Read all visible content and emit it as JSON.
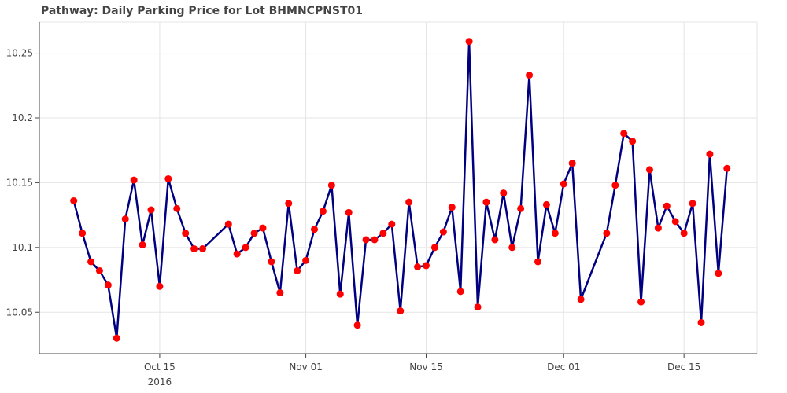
{
  "chart_data": {
    "type": "line",
    "title": "Pathway: Daily Parking Price for Lot BHMNCPNST01",
    "x": [
      "2016-10-05",
      "2016-10-06",
      "2016-10-07",
      "2016-10-08",
      "2016-10-09",
      "2016-10-10",
      "2016-10-11",
      "2016-10-12",
      "2016-10-13",
      "2016-10-14",
      "2016-10-15",
      "2016-10-16",
      "2016-10-17",
      "2016-10-18",
      "2016-10-19",
      "2016-10-20",
      "2016-10-23",
      "2016-10-24",
      "2016-10-25",
      "2016-10-26",
      "2016-10-27",
      "2016-10-28",
      "2016-10-29",
      "2016-10-30",
      "2016-10-31",
      "2016-11-01",
      "2016-11-02",
      "2016-11-03",
      "2016-11-04",
      "2016-11-05",
      "2016-11-06",
      "2016-11-07",
      "2016-11-08",
      "2016-11-09",
      "2016-11-10",
      "2016-11-11",
      "2016-11-12",
      "2016-11-13",
      "2016-11-14",
      "2016-11-15",
      "2016-11-16",
      "2016-11-17",
      "2016-11-18",
      "2016-11-19",
      "2016-11-20",
      "2016-11-21",
      "2016-11-22",
      "2016-11-23",
      "2016-11-24",
      "2016-11-25",
      "2016-11-26",
      "2016-11-27",
      "2016-11-28",
      "2016-11-29",
      "2016-11-30",
      "2016-12-01",
      "2016-12-02",
      "2016-12-03",
      "2016-12-06",
      "2016-12-07",
      "2016-12-08",
      "2016-12-09",
      "2016-12-10",
      "2016-12-11",
      "2016-12-12",
      "2016-12-13",
      "2016-12-14",
      "2016-12-15",
      "2016-12-16",
      "2016-12-17",
      "2016-12-18",
      "2016-12-19",
      "2016-12-20"
    ],
    "series": [
      {
        "line_color": "#000080",
        "marker_color": "#ff0000",
        "values": [
          10.136,
          10.111,
          10.089,
          10.082,
          10.071,
          10.03,
          10.122,
          10.152,
          10.102,
          10.129,
          10.07,
          10.153,
          10.13,
          10.111,
          10.099,
          10.099,
          10.118,
          10.095,
          10.1,
          10.111,
          10.115,
          10.089,
          10.065,
          10.134,
          10.082,
          10.09,
          10.114,
          10.128,
          10.148,
          10.064,
          10.127,
          10.04,
          10.106,
          10.106,
          10.111,
          10.118,
          10.051,
          10.135,
          10.085,
          10.086,
          10.1,
          10.112,
          10.131,
          10.066,
          10.259,
          10.054,
          10.135,
          10.106,
          10.142,
          10.1,
          10.13,
          10.233,
          10.089,
          10.133,
          10.111,
          10.149,
          10.165,
          10.06,
          10.111,
          10.148,
          10.188,
          10.182,
          10.058,
          10.16,
          10.115,
          10.132,
          10.12,
          10.111,
          10.134,
          10.042,
          10.172,
          10.08,
          10.161
        ]
      }
    ],
    "xlim": [
      "2016-10-01",
      "2016-12-23T12:00"
    ],
    "xticks": [
      {
        "value": "2016-10-15",
        "label": "Oct 15",
        "sublabel": "2016"
      },
      {
        "value": "2016-11-01",
        "label": "Nov 01"
      },
      {
        "value": "2016-11-15",
        "label": "Nov 15"
      },
      {
        "value": "2016-12-01",
        "label": "Dec 01"
      },
      {
        "value": "2016-12-15",
        "label": "Dec 15"
      }
    ],
    "ylim": [
      10.018,
      10.274
    ],
    "yticks": [
      10.05,
      10.1,
      10.15,
      10.2,
      10.25
    ],
    "grid": true
  }
}
